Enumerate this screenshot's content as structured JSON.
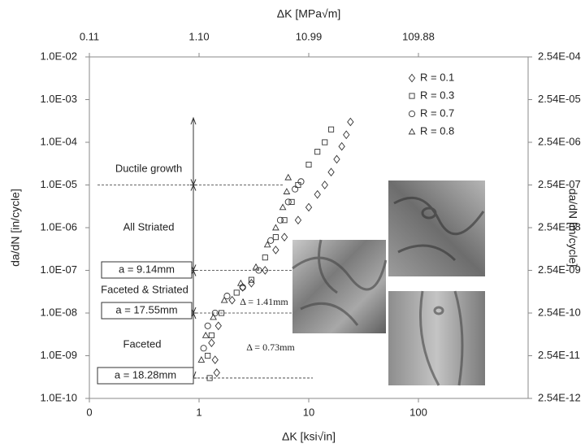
{
  "chart_data": {
    "type": "scatter",
    "x_label": "ΔK [ksi√in]",
    "x2_label": "ΔK [MPa√m]",
    "y_label": "da/dN [in/cycle]",
    "y2_label": "da/dN [m/cycle]",
    "log_x": true,
    "log_y": true,
    "grid": false,
    "legend": "upper right",
    "xlim": [
      0.1,
      1000
    ],
    "xticks": [
      {
        "value": 0.1,
        "label": "0"
      },
      1,
      10,
      100
    ],
    "x2lim": [
      0.10988,
      1098.8
    ],
    "x2ticks": [
      {
        "value": 0.10988,
        "label": "0.11"
      },
      {
        "value": 1.0988,
        "label": "1.10"
      },
      {
        "value": 10.988,
        "label": "10.99"
      },
      109.88
    ],
    "ylim": [
      1e-10,
      0.01
    ],
    "yticks": [
      {
        "value": 1e-10,
        "label": "1.0E-10"
      },
      {
        "value": 1e-09,
        "label": "1.0E-09"
      },
      {
        "value": 1e-08,
        "label": "1.0E-08"
      },
      {
        "value": 1e-07,
        "label": "1.0E-07"
      },
      {
        "value": 1e-06,
        "label": "1.0E-06"
      },
      {
        "value": 1e-05,
        "label": "1.0E-05"
      },
      {
        "value": 0.0001,
        "label": "1.0E-04"
      },
      {
        "value": 0.001,
        "label": "1.0E-03"
      },
      {
        "value": 0.01,
        "label": "1.0E-02"
      }
    ],
    "y2lim": [
      2.54e-12,
      0.000254
    ],
    "y2ticks": [
      {
        "value": 2.54e-12,
        "label": "2.54E-12"
      },
      {
        "value": 2.54e-11,
        "label": "2.54E-11"
      },
      {
        "value": 2.54e-10,
        "label": "2.54E-10"
      },
      {
        "value": 2.54e-09,
        "label": "2.54E-09"
      },
      {
        "value": 2.54e-08,
        "label": "2.54E-08"
      },
      {
        "value": 2.54e-07,
        "label": "2.54E-07"
      },
      {
        "value": 2.54e-06,
        "label": "2.54E-06"
      },
      {
        "value": 2.54e-05,
        "label": "2.54E-05"
      },
      {
        "value": 0.000254,
        "label": "2.54E-04"
      }
    ],
    "series": [
      {
        "name": "R = 0.1",
        "marker": "diamond",
        "color": "#333333",
        "x": [
          1.45,
          1.4,
          1.3,
          1.5,
          2,
          2.5,
          3,
          4,
          5,
          6,
          8,
          10,
          12,
          14,
          16,
          18,
          20,
          22,
          24
        ],
        "values": [
          4e-10,
          8e-10,
          2e-09,
          5e-09,
          2e-08,
          4e-08,
          5e-08,
          1e-07,
          3e-07,
          6e-07,
          1.5e-06,
          3e-06,
          6e-06,
          1e-05,
          2e-05,
          4e-05,
          8e-05,
          0.00015,
          0.0003
        ]
      },
      {
        "name": "R = 0.3",
        "marker": "square",
        "color": "#333333",
        "x": [
          1.25,
          1.2,
          1.3,
          1.6,
          2.2,
          3,
          4,
          5,
          6,
          7,
          8,
          10,
          12,
          14,
          16
        ],
        "values": [
          3e-10,
          1e-09,
          3e-09,
          1e-08,
          3e-08,
          6e-08,
          2e-07,
          6e-07,
          1.5e-06,
          4e-06,
          1e-05,
          3e-05,
          6e-05,
          0.0001,
          0.0002
        ]
      },
      {
        "name": "R = 0.7",
        "marker": "circle",
        "color": "#333333",
        "x": [
          1.1,
          1.2,
          1.4,
          1.8,
          2.5,
          3.5,
          4.5,
          5.5,
          6.5,
          7.5,
          8.5
        ],
        "values": [
          1.5e-09,
          5e-09,
          1e-08,
          2.5e-08,
          4e-08,
          1e-07,
          5e-07,
          1.5e-06,
          4e-06,
          8e-06,
          1.2e-05
        ]
      },
      {
        "name": "R = 0.8",
        "marker": "triangle",
        "color": "#333333",
        "x": [
          1.05,
          1.15,
          1.35,
          1.7,
          2.4,
          3.3,
          4.2,
          5,
          5.8,
          6.3,
          6.5
        ],
        "values": [
          8e-10,
          3e-09,
          8e-09,
          2e-08,
          5e-08,
          1.2e-07,
          4e-07,
          1e-06,
          3e-06,
          7e-06,
          1.5e-05
        ]
      }
    ],
    "reference_lines": [
      1e-05,
      1e-07,
      1e-08,
      3e-10
    ],
    "annotations": [
      "Ductile growth",
      "All Striated",
      "Faceted & Striated",
      "Faceted",
      "Δ = 1.41mm",
      "Δ = 0.73mm"
    ],
    "boxed_annotations": [
      "a = 9.14mm",
      "a = 17.55mm",
      "a = 18.28mm"
    ]
  }
}
